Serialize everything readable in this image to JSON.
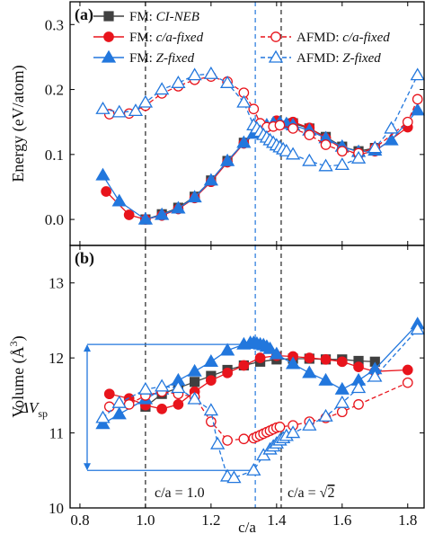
{
  "chart_data": [
    {
      "type": "line",
      "panel_label": "(a)",
      "xlabel": "",
      "ylabel": "Energy (eV/atom)",
      "xlim": [
        0.77,
        1.85
      ],
      "ylim": [
        -0.04,
        0.335
      ],
      "xticks": [
        0.8,
        1.0,
        1.2,
        1.4,
        1.6,
        1.8
      ],
      "yticks": [
        0.0,
        0.1,
        0.2,
        0.3
      ],
      "ytick_labels": [
        "0.0",
        "0.1",
        "0.2",
        "0.3"
      ],
      "legend_position": "top",
      "series": [
        {
          "name": "FM: CI-NEB",
          "prefix": "FM: ",
          "italic": "CI-NEB",
          "color": "#404040",
          "marker": "square",
          "filled": true,
          "dash": "solid",
          "x": [
            1.0,
            1.05,
            1.1,
            1.15,
            1.2,
            1.25,
            1.3,
            1.35,
            1.4,
            1.45,
            1.5,
            1.55,
            1.6,
            1.65,
            1.7
          ],
          "y": [
            0.0,
            0.008,
            0.018,
            0.035,
            0.06,
            0.09,
            0.118,
            0.137,
            0.148,
            0.148,
            0.14,
            0.127,
            0.112,
            0.105,
            0.11
          ]
        },
        {
          "name": "FM: c/a-fixed",
          "prefix": "FM: ",
          "italic": "c/a-fixed",
          "color": "#e8141c",
          "marker": "circle",
          "filled": true,
          "dash": "solid",
          "x": [
            0.88,
            0.95,
            1.0,
            1.05,
            1.1,
            1.15,
            1.2,
            1.25,
            1.3,
            1.35,
            1.4,
            1.45,
            1.5,
            1.55,
            1.6,
            1.65,
            1.7,
            1.8
          ],
          "y": [
            0.043,
            0.007,
            0.0,
            0.006,
            0.016,
            0.033,
            0.058,
            0.088,
            0.117,
            0.14,
            0.152,
            0.15,
            0.141,
            0.125,
            0.109,
            0.1,
            0.105,
            0.142
          ]
        },
        {
          "name": "FM: Z-fixed",
          "prefix": "FM: ",
          "italic": "Z-fixed",
          "color": "#2277dd",
          "marker": "triangle",
          "filled": true,
          "dash": "solid",
          "x": [
            0.87,
            0.92,
            1.0,
            1.05,
            1.1,
            1.15,
            1.2,
            1.25,
            1.3,
            1.33,
            1.35,
            1.37,
            1.39,
            1.41,
            1.43,
            1.45,
            1.5,
            1.55,
            1.6,
            1.65,
            1.7,
            1.75,
            1.83
          ],
          "y": [
            0.068,
            0.028,
            0.0,
            0.007,
            0.017,
            0.034,
            0.06,
            0.09,
            0.118,
            0.132,
            0.14,
            0.145,
            0.148,
            0.149,
            0.147,
            0.145,
            0.137,
            0.125,
            0.112,
            0.104,
            0.106,
            0.122,
            0.168
          ]
        },
        {
          "name": "AFMD: c/a-fixed",
          "prefix": "AFMD: ",
          "italic": "c/a-fixed",
          "color": "#e8141c",
          "marker": "circle",
          "filled": false,
          "dash": "dashed",
          "x": [
            0.89,
            0.95,
            1.0,
            1.05,
            1.1,
            1.15,
            1.2,
            1.25,
            1.3,
            1.33,
            1.35,
            1.37,
            1.39,
            1.41,
            1.45,
            1.5,
            1.55,
            1.6,
            1.65,
            1.7,
            1.8,
            1.83
          ],
          "y": [
            0.162,
            0.163,
            0.175,
            0.194,
            0.205,
            0.215,
            0.22,
            0.212,
            0.195,
            0.17,
            0.148,
            0.142,
            0.143,
            0.145,
            0.14,
            0.13,
            0.115,
            0.105,
            0.102,
            0.11,
            0.15,
            0.185
          ]
        },
        {
          "name": "AFMD: Z-fixed",
          "prefix": "AFMD: ",
          "italic": "Z-fixed",
          "color": "#2277dd",
          "marker": "triangle",
          "filled": false,
          "dash": "dashed",
          "x": [
            0.87,
            0.92,
            0.97,
            1.0,
            1.05,
            1.1,
            1.15,
            1.2,
            1.25,
            1.3,
            1.33,
            1.34,
            1.35,
            1.36,
            1.37,
            1.38,
            1.39,
            1.4,
            1.41,
            1.42,
            1.43,
            1.45,
            1.5,
            1.55,
            1.6,
            1.65,
            1.7,
            1.75,
            1.83
          ],
          "y": [
            0.17,
            0.165,
            0.167,
            0.18,
            0.2,
            0.21,
            0.222,
            0.224,
            0.21,
            0.18,
            0.145,
            0.14,
            0.135,
            0.13,
            0.126,
            0.122,
            0.118,
            0.114,
            0.111,
            0.108,
            0.105,
            0.1,
            0.09,
            0.082,
            0.084,
            0.094,
            0.11,
            0.14,
            0.222
          ]
        }
      ],
      "vertical_lines": [
        {
          "x": 1.0,
          "color": "#222222",
          "dash": "dashed"
        },
        {
          "x": 1.414,
          "color": "#222222",
          "dash": "dashed"
        },
        {
          "x": 1.335,
          "color": "#2277dd",
          "dash": "dashed"
        }
      ]
    },
    {
      "type": "line",
      "panel_label": "(b)",
      "xlabel": "c/a",
      "ylabel": "Volume",
      "ylabel_unit": "(Å",
      "ylabel_sup": "3",
      "ylabel_close": ")",
      "xlim": [
        0.77,
        1.85
      ],
      "ylim": [
        10.0,
        13.5
      ],
      "xticks": [
        0.8,
        1.0,
        1.2,
        1.4,
        1.6,
        1.8
      ],
      "xtick_labels": [
        "0.8",
        "1.0",
        "1.2",
        "1.4",
        "1.6",
        "1.8"
      ],
      "yticks": [
        10,
        11,
        12,
        13
      ],
      "series": [
        {
          "name": "FM: CI-NEB",
          "color": "#404040",
          "marker": "square",
          "filled": true,
          "dash": "solid",
          "x": [
            1.0,
            1.05,
            1.1,
            1.15,
            1.2,
            1.25,
            1.3,
            1.35,
            1.4,
            1.45,
            1.5,
            1.55,
            1.6,
            1.65,
            1.7
          ],
          "y": [
            11.35,
            11.52,
            11.6,
            11.68,
            11.76,
            11.84,
            11.9,
            11.95,
            11.98,
            11.99,
            11.99,
            11.98,
            11.98,
            11.96,
            11.95
          ]
        },
        {
          "name": "FM: c/a-fixed",
          "color": "#e8141c",
          "marker": "circle",
          "filled": true,
          "dash": "solid",
          "x": [
            0.89,
            0.95,
            1.0,
            1.05,
            1.1,
            1.15,
            1.2,
            1.25,
            1.3,
            1.35,
            1.4,
            1.45,
            1.5,
            1.55,
            1.6,
            1.65,
            1.7,
            1.8
          ],
          "y": [
            11.52,
            11.46,
            11.37,
            11.32,
            11.38,
            11.55,
            11.7,
            11.8,
            11.9,
            12.0,
            12.03,
            12.02,
            12.0,
            11.98,
            11.95,
            11.88,
            11.82,
            11.84
          ]
        },
        {
          "name": "FM: Z-fixed",
          "color": "#2277dd",
          "marker": "triangle",
          "filled": true,
          "dash": "solid",
          "x": [
            0.87,
            0.92,
            1.0,
            1.05,
            1.1,
            1.15,
            1.2,
            1.25,
            1.3,
            1.32,
            1.33,
            1.34,
            1.35,
            1.36,
            1.37,
            1.38,
            1.4,
            1.45,
            1.5,
            1.55,
            1.6,
            1.65,
            1.7,
            1.83
          ],
          "y": [
            11.12,
            11.25,
            11.45,
            11.58,
            11.7,
            11.82,
            11.95,
            12.1,
            12.18,
            12.2,
            12.2,
            12.19,
            12.18,
            12.17,
            12.15,
            12.12,
            12.05,
            11.92,
            11.8,
            11.7,
            11.58,
            11.7,
            11.85,
            12.45
          ]
        },
        {
          "name": "AFMD: c/a-fixed",
          "color": "#e8141c",
          "marker": "circle",
          "filled": false,
          "dash": "dashed",
          "x": [
            0.89,
            0.95,
            1.0,
            1.05,
            1.1,
            1.15,
            1.2,
            1.25,
            1.3,
            1.33,
            1.34,
            1.35,
            1.36,
            1.37,
            1.38,
            1.39,
            1.4,
            1.41,
            1.45,
            1.5,
            1.55,
            1.6,
            1.65,
            1.8
          ],
          "y": [
            11.35,
            11.38,
            11.5,
            11.55,
            11.52,
            11.48,
            11.15,
            10.9,
            10.92,
            10.93,
            10.95,
            10.97,
            10.99,
            11.01,
            11.03,
            11.05,
            11.07,
            11.08,
            11.1,
            11.15,
            11.2,
            11.28,
            11.38,
            11.67
          ]
        },
        {
          "name": "AFMD: Z-fixed",
          "color": "#2277dd",
          "marker": "triangle",
          "filled": false,
          "dash": "dashed",
          "x": [
            0.87,
            0.92,
            1.0,
            1.05,
            1.1,
            1.15,
            1.2,
            1.22,
            1.25,
            1.27,
            1.33,
            1.36,
            1.38,
            1.39,
            1.4,
            1.41,
            1.42,
            1.43,
            1.45,
            1.5,
            1.55,
            1.6,
            1.65,
            1.7,
            1.83
          ],
          "y": [
            11.2,
            11.4,
            11.58,
            11.62,
            11.6,
            11.45,
            11.3,
            10.85,
            10.42,
            10.4,
            10.5,
            10.7,
            10.78,
            10.82,
            10.86,
            10.9,
            10.93,
            10.96,
            11.0,
            11.1,
            11.22,
            11.4,
            11.6,
            11.75,
            12.38
          ]
        }
      ],
      "vertical_lines": [
        {
          "x": 1.0,
          "color": "#222222",
          "dash": "dashed"
        },
        {
          "x": 1.414,
          "color": "#222222",
          "dash": "dashed"
        },
        {
          "x": 1.335,
          "color": "#2277dd",
          "dash": "dashed"
        }
      ],
      "annotations": {
        "ca1_label": "c/a = 1.0",
        "ca2_prefix": "c/a = ",
        "ca2_root": "√",
        "ca2_radicand": "2",
        "dv_symbol": "ΔV",
        "dv_sub": "sp",
        "dv_top": 12.18,
        "dv_bottom": 10.5
      }
    }
  ]
}
